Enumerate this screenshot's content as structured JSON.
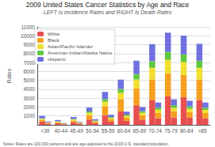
{
  "chart_data": {
    "type": "bar",
    "title": "2009 United States Cancer Statistics by Age and Race",
    "subtitle": "LEFT is Incidence Rates and RIGHT is Death Rates",
    "ylabel": "Rates",
    "note": "Notes: Rates are 100,000 persons and are age-adjusted to the 2000 U.S. standard population.",
    "categories": [
      "<39",
      "40-44",
      "45-49",
      "50-54",
      "55-59",
      "60-64",
      "65-69",
      "70-74",
      "75-79",
      "80-84",
      ">85"
    ],
    "series": [
      {
        "name": "White",
        "color": "#e85050",
        "incidence": [
          350,
          170,
          280,
          600,
          1100,
          1500,
          2200,
          2800,
          3200,
          3100,
          2800
        ],
        "death": [
          130,
          70,
          100,
          200,
          360,
          460,
          600,
          750,
          850,
          800,
          740
        ]
      },
      {
        "name": "Black",
        "color": "#f5a020",
        "incidence": [
          200,
          120,
          210,
          500,
          1000,
          1400,
          1900,
          2300,
          2600,
          2500,
          2300
        ],
        "death": [
          80,
          55,
          85,
          150,
          260,
          350,
          480,
          600,
          680,
          640,
          600
        ]
      },
      {
        "name": "Asian/Pacific Islander",
        "color": "#f0e030",
        "incidence": [
          120,
          70,
          110,
          250,
          500,
          700,
          1000,
          1300,
          1500,
          1450,
          1300
        ],
        "death": [
          40,
          25,
          40,
          80,
          150,
          200,
          270,
          340,
          390,
          370,
          340
        ]
      },
      {
        "name": "American Indian/Alaska Native",
        "color": "#60c840",
        "incidence": [
          60,
          40,
          70,
          160,
          300,
          430,
          600,
          760,
          900,
          870,
          800
        ],
        "death": [
          20,
          15,
          28,
          55,
          100,
          140,
          190,
          240,
          280,
          265,
          245
        ]
      },
      {
        "name": "Hispanic",
        "color": "#7070e0",
        "incidence": [
          280,
          150,
          220,
          430,
          800,
          1050,
          1500,
          1900,
          2150,
          2100,
          1900
        ],
        "death": [
          100,
          55,
          80,
          150,
          265,
          330,
          460,
          580,
          660,
          625,
          575
        ]
      }
    ],
    "stacked": true,
    "ylim": [
      0,
      11000
    ],
    "yticks": [
      1000,
      2000,
      3000,
      4000,
      5000,
      6000,
      7000,
      8000,
      9000,
      10000,
      11000
    ],
    "grid": true,
    "legend": "upper left"
  }
}
